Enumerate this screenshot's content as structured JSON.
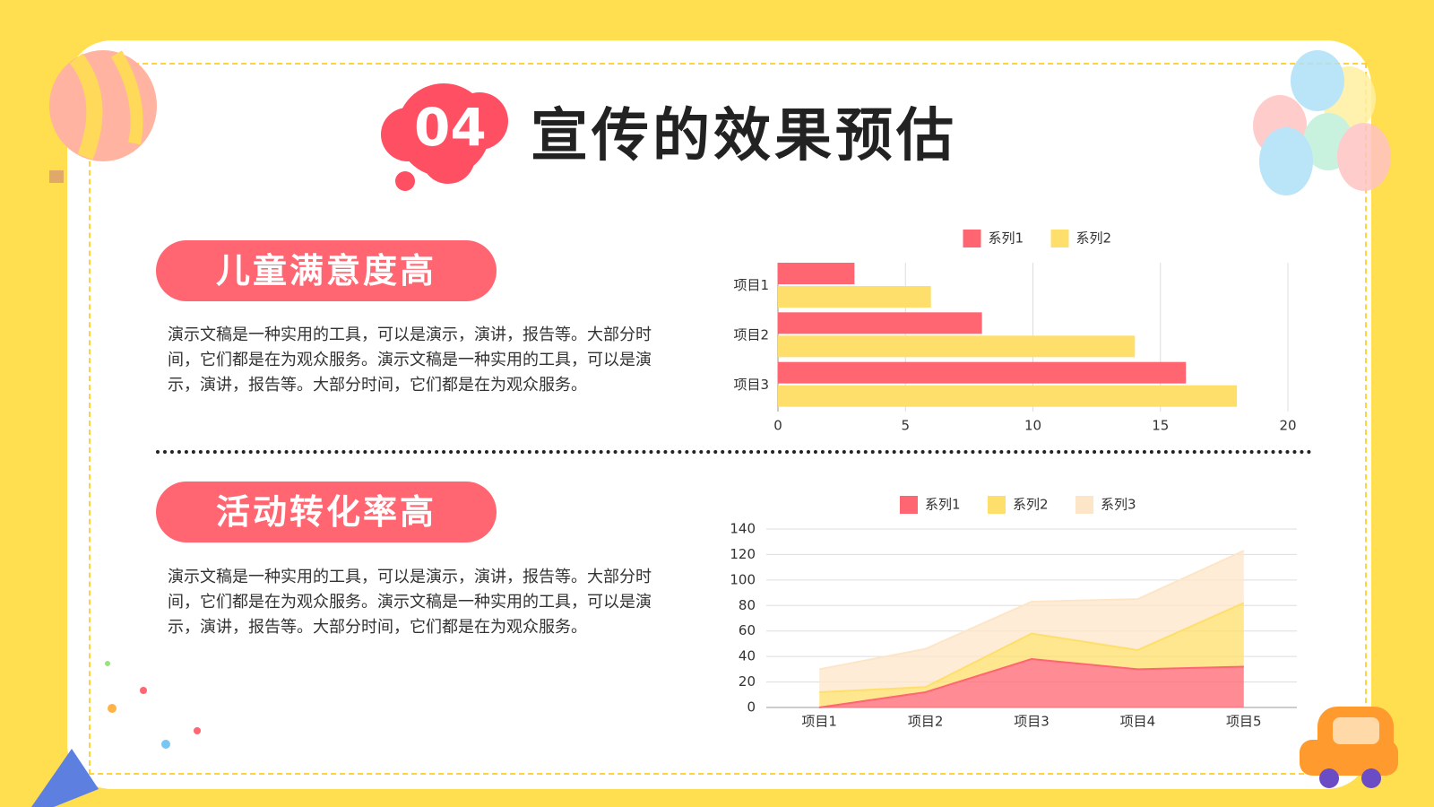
{
  "header": {
    "number": "04",
    "title": "宣传的效果预估"
  },
  "sections": [
    {
      "heading": "儿童满意度高",
      "text": "演示文稿是一种实用的工具，可以是演示，演讲，报告等。大部分时间，它们都是在为观众服务。演示文稿是一种实用的工具，可以是演示，演讲，报告等。大部分时间，它们都是在为观众服务。"
    },
    {
      "heading": "活动转化率高",
      "text": "演示文稿是一种实用的工具，可以是演示，演讲，报告等。大部分时间，它们都是在为观众服务。演示文稿是一种实用的工具，可以是演示，演讲，报告等。大部分时间，它们都是在为观众服务。"
    }
  ],
  "chart_data": [
    {
      "type": "bar",
      "orientation": "horizontal",
      "categories": [
        "项目1",
        "项目2",
        "项目3"
      ],
      "series": [
        {
          "name": "系列1",
          "color": "#ff6671",
          "values": [
            3,
            8,
            16
          ]
        },
        {
          "name": "系列2",
          "color": "#ffdf6b",
          "values": [
            6,
            14,
            18
          ]
        }
      ],
      "xlim": [
        0,
        20
      ],
      "xticks": [
        0,
        5,
        10,
        15,
        20
      ],
      "grid": true,
      "legend": "top"
    },
    {
      "type": "area",
      "stacked": true,
      "categories": [
        "项目1",
        "项目2",
        "项目3",
        "项目4",
        "项目5"
      ],
      "series": [
        {
          "name": "系列1",
          "color": "#ff6671",
          "values": [
            0,
            12,
            38,
            30,
            32
          ]
        },
        {
          "name": "系列2",
          "color": "#ffdf6b",
          "values": [
            12,
            4,
            20,
            15,
            50
          ]
        },
        {
          "name": "系列3",
          "color": "#fde6c8",
          "values": [
            18,
            30,
            25,
            40,
            41
          ]
        }
      ],
      "ylim": [
        0,
        140
      ],
      "yticks": [
        0,
        20,
        40,
        60,
        80,
        100,
        120,
        140
      ],
      "grid": true,
      "legend": "top"
    }
  ]
}
